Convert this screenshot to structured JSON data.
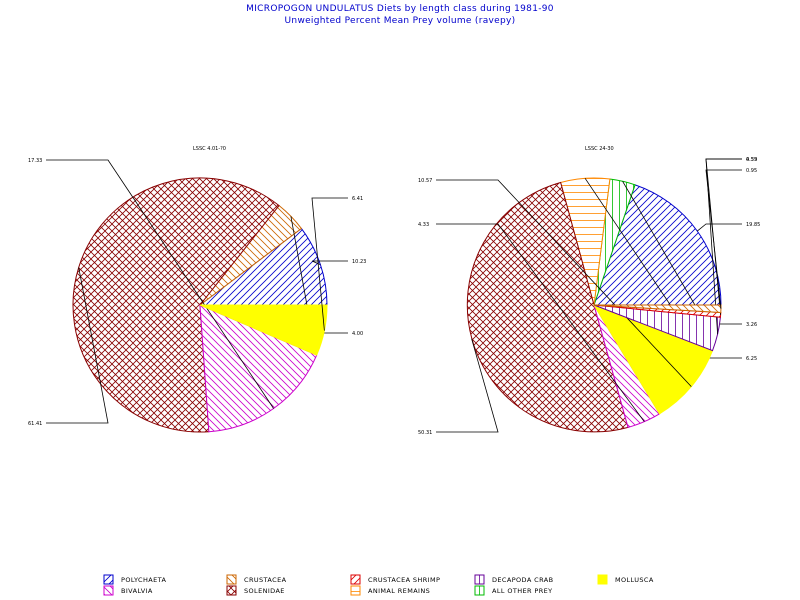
{
  "page": {
    "title": "MICROPOGON UNDULATUS Diets by length class during 1981-90",
    "subtitle": "Unweighted Percent Mean Prey volume (ravepy)"
  },
  "categories": [
    {
      "key": "poly",
      "name": "POLYCHAETA",
      "color": "#0000cc",
      "pattern": "diag-up"
    },
    {
      "key": "biv",
      "name": "BIVALVIA",
      "color": "#cc00cc",
      "pattern": "diag-down"
    },
    {
      "key": "crus",
      "name": "CRUSTACEA",
      "color": "#cc6600",
      "pattern": "diag-down"
    },
    {
      "key": "sol",
      "name": "SOLENIDAE",
      "color": "#880000",
      "pattern": "cross"
    },
    {
      "key": "shr",
      "name": "CRUSTACEA SHRIMP",
      "color": "#dd0000",
      "pattern": "diag-up"
    },
    {
      "key": "anim",
      "name": "ANIMAL REMAINS",
      "color": "#ff8800",
      "pattern": "horiz"
    },
    {
      "key": "crab",
      "name": "DECAPODA CRAB",
      "color": "#660099",
      "pattern": "vert"
    },
    {
      "key": "oth",
      "name": "ALL OTHER PREY",
      "color": "#00bb00",
      "pattern": "vert"
    },
    {
      "key": "mol",
      "name": "MOLLUSCA",
      "color": "#ffff00",
      "pattern": "solid"
    }
  ],
  "chart_data": [
    {
      "type": "pie",
      "title": "LSSC 4.01-?0",
      "slices": [
        {
          "category": "POLYCHAETA",
          "value": 10.23,
          "label": "10.23"
        },
        {
          "category": "CRUSTACEA",
          "value": 4.0,
          "label": "4.00"
        },
        {
          "category": "SOLENIDAE",
          "value": 61.41,
          "label": "61.41"
        },
        {
          "category": "BIVALVIA",
          "value": 17.33,
          "label": "17.33"
        },
        {
          "category": "MOLLUSCA",
          "value": 6.41,
          "label": "6.41"
        }
      ]
    },
    {
      "type": "pie",
      "title": "LSSC 24-30",
      "slices": [
        {
          "category": "POLYCHAETA",
          "value": 19.85,
          "label": "19.85"
        },
        {
          "category": "ALL OTHER PREY",
          "value": 3.26,
          "label": "3.26"
        },
        {
          "category": "ANIMAL REMAINS",
          "value": 6.25,
          "label": "6.25"
        },
        {
          "category": "SOLENIDAE",
          "value": 50.31,
          "label": "50.31"
        },
        {
          "category": "BIVALVIA",
          "value": 4.33,
          "label": "4.33"
        },
        {
          "category": "MOLLUSCA",
          "value": 10.57,
          "label": "10.57"
        },
        {
          "category": "DECAPODA CRAB",
          "value": 4.33,
          "label": "4.33"
        },
        {
          "category": "CRUSTACEA SHRIMP",
          "value": 0.59,
          "label": "0.59"
        },
        {
          "category": "CRUSTACEA",
          "value": 0.95,
          "label": "0.95"
        }
      ]
    }
  ]
}
